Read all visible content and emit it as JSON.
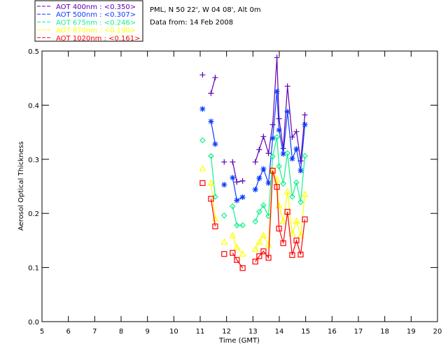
{
  "chart_data": {
    "type": "line",
    "title_lines": [
      "PML, N 50 22', W 04 08', Alt 0m",
      "Data from: 14 Feb 2008"
    ],
    "xlabel": "Time (GMT)",
    "ylabel": "Aerosol Optical Thickness",
    "xlim": [
      5,
      20
    ],
    "ylim": [
      0,
      0.5
    ],
    "xticks": [
      "5",
      "6",
      "7",
      "8",
      "9",
      "10",
      "11",
      "12",
      "13",
      "14",
      "15",
      "16",
      "17",
      "18",
      "19",
      "20"
    ],
    "yticks": [
      "0.0",
      "0.1",
      "0.2",
      "0.3",
      "0.4",
      "0.5"
    ],
    "legend_position": "top-left-outside",
    "x": [
      11.09,
      11.41,
      11.57,
      11.91,
      12.23,
      12.39,
      12.61,
      13.09,
      13.24,
      13.4,
      13.59,
      13.75,
      13.91,
      13.99,
      14.15,
      14.31,
      14.49,
      14.65,
      14.81,
      14.97
    ],
    "segments": [
      [
        0
      ],
      [
        1,
        2
      ],
      [
        3
      ],
      [
        4,
        5,
        6
      ],
      [
        7,
        8,
        9,
        10,
        11,
        12,
        13,
        14,
        15,
        16,
        17,
        18,
        19
      ]
    ],
    "series": [
      {
        "name": "AOT  400nm : <0.350>",
        "color": "#6000b0",
        "marker": "plus",
        "values": [
          0.456,
          0.422,
          0.451,
          0.295,
          0.295,
          0.258,
          0.26,
          0.295,
          0.318,
          0.342,
          0.311,
          0.364,
          0.488,
          0.375,
          0.32,
          0.435,
          0.341,
          0.351,
          0.297,
          0.382
        ]
      },
      {
        "name": "AOT  500nm : <0.307>",
        "color": "#0a3cff",
        "marker": "asterisk",
        "values": [
          0.393,
          0.37,
          0.328,
          0.253,
          0.266,
          0.224,
          0.23,
          0.244,
          0.265,
          0.282,
          0.256,
          0.339,
          0.425,
          0.354,
          0.31,
          0.388,
          0.301,
          0.319,
          0.279,
          0.364
        ]
      },
      {
        "name": "AOT  675nm : <0.246>",
        "color": "#14f08c",
        "marker": "diamond",
        "values": [
          0.335,
          0.306,
          0.231,
          0.196,
          0.213,
          0.178,
          0.178,
          0.185,
          0.203,
          0.215,
          0.195,
          0.305,
          0.341,
          0.287,
          0.255,
          0.311,
          0.231,
          0.257,
          0.221,
          0.306
        ]
      },
      {
        "name": "AOT  870nm : <0.190>",
        "color": "#ffff00",
        "marker": "triangle",
        "values": [
          0.283,
          0.256,
          0.19,
          0.147,
          0.159,
          0.137,
          0.125,
          0.134,
          0.147,
          0.159,
          0.142,
          0.279,
          0.262,
          0.214,
          0.185,
          0.24,
          0.163,
          0.186,
          0.159,
          0.235
        ]
      },
      {
        "name": "AOT 1020nm : <0.161>",
        "color": "#ff0000",
        "marker": "square",
        "values": [
          0.256,
          0.227,
          0.176,
          0.125,
          0.127,
          0.114,
          0.099,
          0.111,
          0.121,
          0.13,
          0.118,
          0.279,
          0.249,
          0.172,
          0.145,
          0.203,
          0.123,
          0.15,
          0.124,
          0.189
        ]
      }
    ]
  }
}
